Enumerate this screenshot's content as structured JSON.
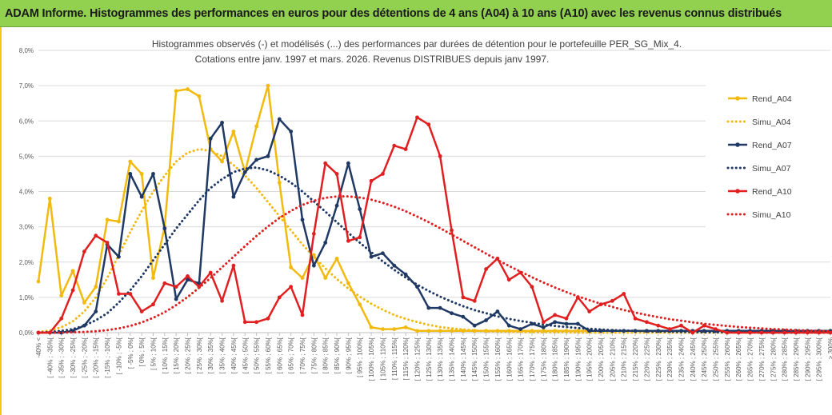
{
  "banner": {
    "title": "ADAM Informe. Histogrammes des performances en euros pour des détentions de 4 ans (A04) à 10 ans (A10) avec les revenus connus distribués"
  },
  "chart_data": {
    "type": "line",
    "title": "Histogrammes observés (-) et modélisés (...) des performances par durées de détention pour le portefeuille PER_SG_Mix_4.",
    "subtitle": "Cotations entre janv. 1997 et mars. 2026. Revenus DISTRIBUES depuis janv 1997.",
    "ylim": [
      0,
      8
    ],
    "yticks": [
      "0,0%",
      "1,0%",
      "2,0%",
      "3,0%",
      "4,0%",
      "5,0%",
      "6,0%",
      "7,0%",
      "8,0%"
    ],
    "categories": [
      "-40% <",
      "[ -40% ; -35%[",
      "[ -35% ; -30%[",
      "[ -30% ; -25%[",
      "[ -25% ; -20%[",
      "[ -20% ; -15%[",
      "[ -15% ; -10%[",
      "[ -10% ; -5%[",
      "[ -5% ; 0%[",
      "[ 0% ; 5%[",
      "[ 5% ; 10%[",
      "[ 10% ; 15%[",
      "[ 15% ; 20%[",
      "[ 20% ; 25%[",
      "[ 25% ; 30%[",
      "[ 30% ; 35%[",
      "[ 35% ; 40%[",
      "[ 40% ; 45%[",
      "[ 45% ; 50%[",
      "[ 50% ; 55%[",
      "[ 55% ; 60%[",
      "[ 60% ; 65%[",
      "[ 65% ; 70%[",
      "[ 70% ; 75%[",
      "[ 75% ; 80%[",
      "[ 80% ; 85%[",
      "[ 85% ; 90%[",
      "[ 90% ; 95%[",
      "[ 95% ; 100%[",
      "[ 100% ; 105%[",
      "[ 105% ; 110%[",
      "[ 110% ; 115%[",
      "[ 115% ; 120%[",
      "[ 120% ; 125%[",
      "[ 125% ; 130%[",
      "[ 130% ; 135%[",
      "[ 135% ; 140%[",
      "[ 140% ; 145%[",
      "[ 145% ; 150%[",
      "[ 150% ; 155%[",
      "[ 155% ; 160%[",
      "[ 160% ; 165%[",
      "[ 165% ; 170%[",
      "[ 170% ; 175%[",
      "[ 175% ; 180%[",
      "[ 180% ; 185%[",
      "[ 185% ; 190%[",
      "[ 190% ; 195%[",
      "[ 195% ; 200%[",
      "[ 200% ; 205%[",
      "[ 205% ; 210%[",
      "[ 210% ; 215%[",
      "[ 215% ; 220%[",
      "[ 220% ; 225%[",
      "[ 225% ; 230%[",
      "[ 230% ; 235%[",
      "[ 235% ; 240%[",
      "[ 240% ; 245%[",
      "[ 245% ; 250%[",
      "[ 250% ; 255%[",
      "[ 255% ; 260%[",
      "[ 260% ; 265%[",
      "[ 265% ; 270%[",
      "[ 270% ; 275%[",
      "[ 275% ; 280%[",
      "[ 280% ; 285%[",
      "[ 285% ; 290%[",
      "[ 290% ; 295%[",
      "[ 295% ; 300%[",
      "> 300%"
    ],
    "series": [
      {
        "name": "Rend_A04",
        "color": "#f2b90f",
        "style": "solid",
        "values": [
          1.45,
          3.8,
          1.05,
          1.75,
          0.85,
          1.3,
          3.2,
          3.15,
          4.85,
          4.5,
          1.55,
          3.0,
          6.85,
          6.9,
          6.7,
          5.2,
          4.85,
          5.7,
          4.55,
          5.85,
          7.0,
          4.25,
          1.85,
          1.55,
          2.2,
          1.55,
          2.1,
          1.4,
          0.8,
          0.15,
          0.1,
          0.1,
          0.15,
          0.05,
          0.05,
          0.05,
          0.05,
          0.05,
          0.05,
          0.05,
          0.05,
          0.05,
          0.05,
          0.05,
          0.05,
          0.05,
          0.05,
          0.05,
          0.05,
          0.05,
          0.05,
          0.05,
          0.05,
          0.05,
          0.05,
          0.05,
          0.05,
          0.05,
          0.05,
          0.05,
          0.05,
          0.05,
          0.05,
          0.05,
          0.05,
          0.05,
          0.05,
          0.05,
          0.05,
          0.05
        ]
      },
      {
        "name": "Simu_A04",
        "color": "#f2b90f",
        "style": "dotted",
        "values": [
          0.02,
          0.06,
          0.15,
          0.32,
          0.6,
          1.0,
          1.55,
          2.2,
          2.85,
          3.45,
          4.0,
          4.45,
          4.85,
          5.1,
          5.2,
          5.15,
          5.0,
          4.75,
          4.45,
          4.1,
          3.7,
          3.3,
          2.9,
          2.5,
          2.15,
          1.82,
          1.52,
          1.25,
          1.02,
          0.82,
          0.65,
          0.5,
          0.39,
          0.3,
          0.22,
          0.16,
          0.12,
          0.09,
          0.06,
          0.04,
          0.03,
          0.02,
          0.02,
          0.01,
          0.01,
          0.01,
          0.01,
          0.0,
          0.0,
          0.0,
          0.0,
          0.0,
          0.0,
          0.0,
          0.0,
          0.0,
          0.0,
          0.0,
          0.0,
          0.0,
          0.0,
          0.0,
          0.0,
          0.0,
          0.0,
          0.0,
          0.0,
          0.0,
          0.0,
          0.0
        ]
      },
      {
        "name": "Rend_A07",
        "color": "#1f3864",
        "style": "solid",
        "values": [
          0.0,
          0.0,
          0.0,
          0.05,
          0.2,
          0.6,
          2.5,
          2.15,
          4.5,
          3.85,
          4.5,
          2.95,
          0.95,
          1.5,
          1.4,
          5.5,
          5.95,
          3.85,
          4.55,
          4.9,
          5.0,
          6.05,
          5.7,
          3.2,
          1.9,
          2.55,
          3.6,
          4.8,
          3.5,
          2.15,
          2.25,
          1.9,
          1.65,
          1.3,
          0.7,
          0.7,
          0.55,
          0.45,
          0.2,
          0.35,
          0.6,
          0.2,
          0.1,
          0.25,
          0.15,
          0.3,
          0.25,
          0.25,
          0.05,
          0.05,
          0.05,
          0.05,
          0.05,
          0.05,
          0.05,
          0.05,
          0.05,
          0.05,
          0.05,
          0.05,
          0.05,
          0.05,
          0.05,
          0.05,
          0.05,
          0.05,
          0.05,
          0.05,
          0.05,
          0.05
        ]
      },
      {
        "name": "Simu_A07",
        "color": "#1f3864",
        "style": "dotted",
        "values": [
          0.0,
          0.02,
          0.05,
          0.1,
          0.2,
          0.35,
          0.55,
          0.85,
          1.2,
          1.6,
          2.05,
          2.5,
          2.95,
          3.35,
          3.75,
          4.1,
          4.35,
          4.55,
          4.65,
          4.68,
          4.6,
          4.45,
          4.25,
          4.0,
          3.72,
          3.43,
          3.13,
          2.83,
          2.55,
          2.28,
          2.02,
          1.78,
          1.56,
          1.36,
          1.18,
          1.02,
          0.88,
          0.75,
          0.64,
          0.55,
          0.46,
          0.39,
          0.33,
          0.28,
          0.23,
          0.19,
          0.16,
          0.13,
          0.11,
          0.09,
          0.07,
          0.06,
          0.05,
          0.04,
          0.03,
          0.03,
          0.02,
          0.02,
          0.01,
          0.01,
          0.01,
          0.01,
          0.01,
          0.0,
          0.0,
          0.0,
          0.0,
          0.0,
          0.0,
          0.0
        ]
      },
      {
        "name": "Rend_A10",
        "color": "#e02020",
        "style": "solid",
        "values": [
          0.0,
          0.0,
          0.4,
          1.2,
          2.3,
          2.75,
          2.55,
          1.1,
          1.1,
          0.6,
          0.8,
          1.4,
          1.3,
          1.6,
          1.3,
          1.7,
          0.9,
          1.9,
          0.3,
          0.3,
          0.4,
          1.0,
          1.3,
          0.5,
          2.8,
          4.8,
          4.5,
          2.6,
          2.7,
          4.3,
          4.5,
          5.3,
          5.2,
          6.1,
          5.9,
          5.0,
          2.9,
          1.0,
          0.9,
          1.8,
          2.1,
          1.5,
          1.7,
          1.3,
          0.3,
          0.5,
          0.4,
          1.0,
          0.6,
          0.8,
          0.9,
          1.1,
          0.4,
          0.3,
          0.2,
          0.1,
          0.2,
          0.0,
          0.2,
          0.1,
          0.0,
          0.0,
          0.0,
          0.0,
          0.0,
          0.0,
          0.0,
          0.0,
          0.0,
          0.0
        ]
      },
      {
        "name": "Simu_A10",
        "color": "#e02020",
        "style": "dotted",
        "values": [
          0.0,
          0.0,
          0.0,
          0.01,
          0.02,
          0.04,
          0.07,
          0.12,
          0.19,
          0.29,
          0.42,
          0.58,
          0.78,
          1.01,
          1.27,
          1.55,
          1.85,
          2.15,
          2.45,
          2.74,
          3.01,
          3.25,
          3.45,
          3.62,
          3.74,
          3.82,
          3.86,
          3.86,
          3.83,
          3.77,
          3.68,
          3.57,
          3.44,
          3.29,
          3.13,
          2.96,
          2.78,
          2.6,
          2.42,
          2.24,
          2.06,
          1.89,
          1.73,
          1.57,
          1.42,
          1.28,
          1.15,
          1.03,
          0.92,
          0.82,
          0.73,
          0.64,
          0.57,
          0.5,
          0.44,
          0.38,
          0.34,
          0.29,
          0.25,
          0.22,
          0.19,
          0.16,
          0.14,
          0.12,
          0.1,
          0.09,
          0.07,
          0.06,
          0.05,
          0.04
        ]
      }
    ],
    "legend_position": "right"
  }
}
